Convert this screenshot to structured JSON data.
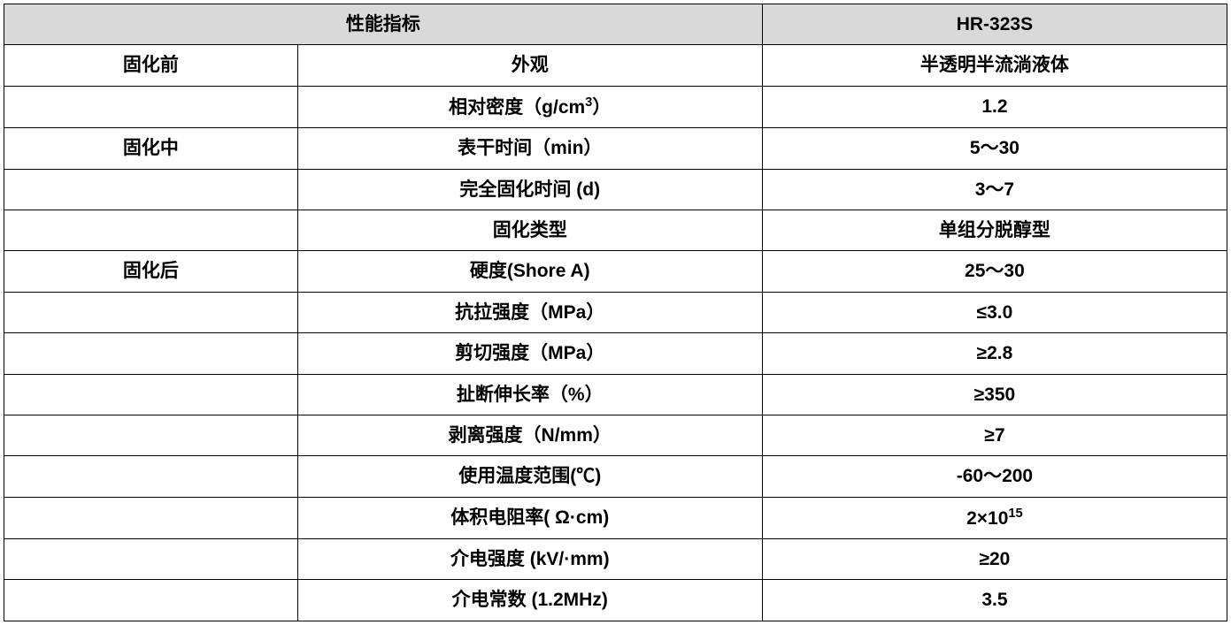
{
  "table": {
    "header": {
      "param_label": "性能指标",
      "product_label": "HR-323S"
    },
    "header_bg": "#d9d9d9",
    "border_color": "#000000",
    "text_color": "#000000",
    "font_size_pt": 16,
    "font_weight": "bold",
    "columns": [
      {
        "key": "stage",
        "width_pct": 24
      },
      {
        "key": "param",
        "width_pct": 38
      },
      {
        "key": "value",
        "width_pct": 38
      }
    ],
    "rows": [
      {
        "stage": "固化前",
        "param": "外观",
        "value": "半透明半流淌液体"
      },
      {
        "stage": "",
        "param_html": "相对密度（g/cm<sup>3</sup>）",
        "value": "1.2"
      },
      {
        "stage": "固化中",
        "param": "表干时间（min）",
        "value": "5～30"
      },
      {
        "stage": "",
        "param": "完全固化时间 (d)",
        "value": "3～7"
      },
      {
        "stage": "",
        "param": "固化类型",
        "value": "单组分脱醇型"
      },
      {
        "stage": "固化后",
        "param": "硬度(Shore A)",
        "value": "25～30"
      },
      {
        "stage": "",
        "param": "抗拉强度（MPa）",
        "value": "≤3.0"
      },
      {
        "stage": "",
        "param": "剪切强度（MPa）",
        "value": "≥2.8"
      },
      {
        "stage": "",
        "param": "扯断伸长率（%）",
        "value": "≥350"
      },
      {
        "stage": "",
        "param": "剥离强度（N/mm）",
        "value": "≥7"
      },
      {
        "stage": "",
        "param": "使用温度范围(℃)",
        "value": "-60～200"
      },
      {
        "stage": "",
        "param": "体积电阻率( Ω·cm)",
        "value_html": "2×10<sup>15</sup>"
      },
      {
        "stage": "",
        "param": "介电强度 (kV/·mm)",
        "value": "≥20"
      },
      {
        "stage": "",
        "param": "介电常数 (1.2MHz)",
        "value": "3.5"
      }
    ]
  }
}
